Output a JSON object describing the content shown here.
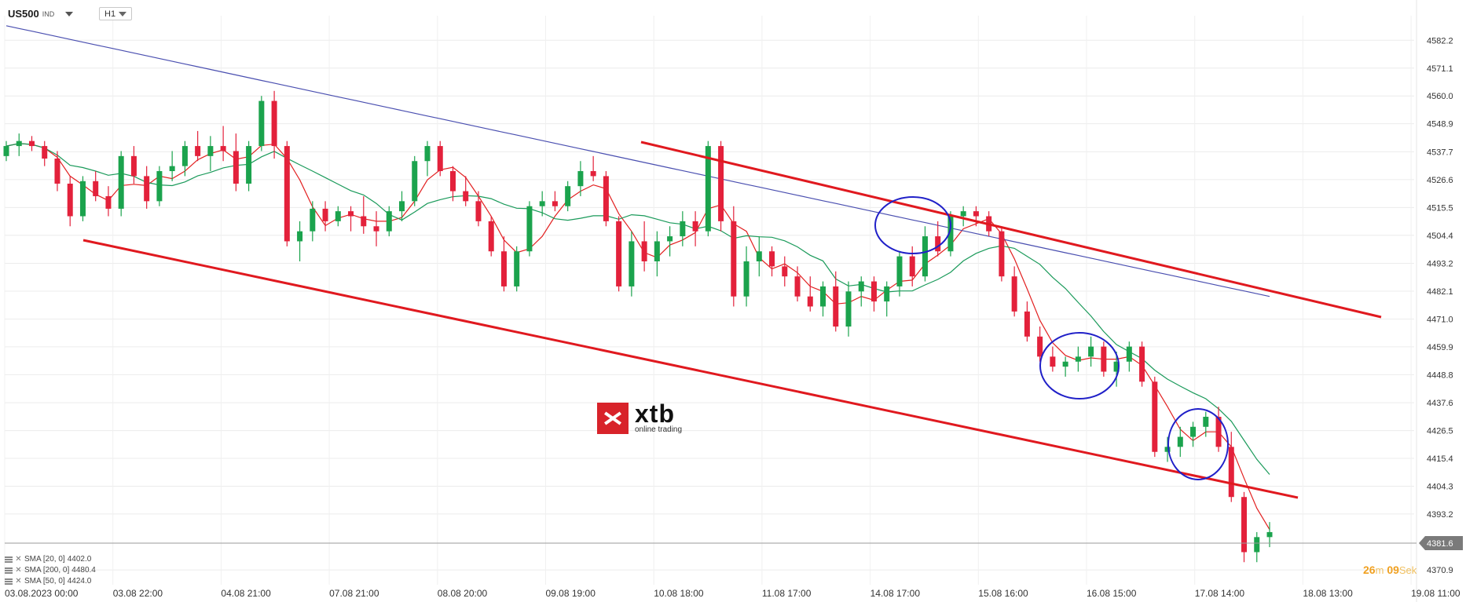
{
  "header": {
    "symbol": "US500",
    "symbol_type": "IND",
    "timeframe": "H1"
  },
  "logo": {
    "main": "xtb",
    "sub": "online trading"
  },
  "countdown": {
    "minutes": "26",
    "min_unit": "m",
    "seconds": "09",
    "sec_unit": "Sek"
  },
  "indicators": [
    {
      "label": "SMA [20, 0]",
      "value": "4402.0"
    },
    {
      "label": "SMA [200, 0]",
      "value": "4480.4"
    },
    {
      "label": "SMA [50, 0]",
      "value": "4424.0"
    }
  ],
  "chart_data": {
    "type": "candlestick",
    "ylim": [
      4365,
      4592
    ],
    "y_ticks": [
      "4582.2",
      "4571.1",
      "4560.0",
      "4548.9",
      "4537.7",
      "4526.6",
      "4515.5",
      "4504.4",
      "4493.2",
      "4482.1",
      "4471.0",
      "4459.9",
      "4448.8",
      "4437.6",
      "4426.5",
      "4415.4",
      "4404.3",
      "4393.2",
      "4370.9"
    ],
    "x_ticks": [
      "03.08.2023  00:00",
      "03.08  22:00",
      "04.08  21:00",
      "07.08  21:00",
      "08.08  20:00",
      "09.08  19:00",
      "10.08  18:00",
      "11.08  17:00",
      "14.08  17:00",
      "15.08  16:00",
      "16.08  15:00",
      "17.08  14:00",
      "18.08  13:00",
      "19.08  11:00"
    ],
    "current_price": "4381.6",
    "candles": [
      [
        4536,
        4542,
        4534,
        4540
      ],
      [
        4540,
        4545,
        4536,
        4542
      ],
      [
        4542,
        4544,
        4538,
        4540
      ],
      [
        4540,
        4542,
        4532,
        4535
      ],
      [
        4535,
        4538,
        4522,
        4525
      ],
      [
        4525,
        4528,
        4508,
        4512
      ],
      [
        4512,
        4528,
        4510,
        4526
      ],
      [
        4526,
        4530,
        4518,
        4520
      ],
      [
        4520,
        4524,
        4512,
        4515
      ],
      [
        4515,
        4538,
        4512,
        4536
      ],
      [
        4536,
        4540,
        4525,
        4528
      ],
      [
        4528,
        4532,
        4515,
        4518
      ],
      [
        4518,
        4532,
        4516,
        4530
      ],
      [
        4530,
        4538,
        4526,
        4532
      ],
      [
        4532,
        4542,
        4528,
        4540
      ],
      [
        4540,
        4546,
        4534,
        4536
      ],
      [
        4536,
        4544,
        4530,
        4540
      ],
      [
        4540,
        4548,
        4534,
        4538
      ],
      [
        4538,
        4545,
        4522,
        4525
      ],
      [
        4525,
        4542,
        4522,
        4540
      ],
      [
        4540,
        4560,
        4538,
        4558
      ],
      [
        4558,
        4562,
        4535,
        4540
      ],
      [
        4540,
        4542,
        4500,
        4502
      ],
      [
        4502,
        4510,
        4494,
        4506
      ],
      [
        4506,
        4518,
        4502,
        4515
      ],
      [
        4515,
        4518,
        4506,
        4510
      ],
      [
        4510,
        4516,
        4508,
        4514
      ],
      [
        4514,
        4516,
        4506,
        4512
      ],
      [
        4512,
        4520,
        4505,
        4508
      ],
      [
        4508,
        4514,
        4500,
        4506
      ],
      [
        4506,
        4516,
        4504,
        4514
      ],
      [
        4514,
        4522,
        4510,
        4518
      ],
      [
        4518,
        4536,
        4516,
        4534
      ],
      [
        4534,
        4542,
        4528,
        4540
      ],
      [
        4540,
        4542,
        4528,
        4530
      ],
      [
        4530,
        4532,
        4518,
        4522
      ],
      [
        4522,
        4528,
        4516,
        4518
      ],
      [
        4518,
        4522,
        4508,
        4510
      ],
      [
        4510,
        4512,
        4496,
        4498
      ],
      [
        4498,
        4504,
        4482,
        4484
      ],
      [
        4484,
        4500,
        4482,
        4498
      ],
      [
        4498,
        4518,
        4496,
        4516
      ],
      [
        4516,
        4522,
        4512,
        4518
      ],
      [
        4518,
        4522,
        4514,
        4516
      ],
      [
        4516,
        4526,
        4514,
        4524
      ],
      [
        4524,
        4534,
        4520,
        4530
      ],
      [
        4530,
        4536,
        4526,
        4528
      ],
      [
        4528,
        4530,
        4508,
        4510
      ],
      [
        4510,
        4512,
        4482,
        4484
      ],
      [
        4484,
        4506,
        4480,
        4502
      ],
      [
        4502,
        4510,
        4490,
        4494
      ],
      [
        4494,
        4506,
        4488,
        4502
      ],
      [
        4502,
        4508,
        4496,
        4504
      ],
      [
        4504,
        4514,
        4500,
        4510
      ],
      [
        4510,
        4514,
        4500,
        4506
      ],
      [
        4506,
        4542,
        4504,
        4540
      ],
      [
        4540,
        4542,
        4506,
        4510
      ],
      [
        4510,
        4516,
        4476,
        4480
      ],
      [
        4480,
        4500,
        4476,
        4494
      ],
      [
        4494,
        4504,
        4488,
        4498
      ],
      [
        4498,
        4500,
        4488,
        4492
      ],
      [
        4492,
        4496,
        4484,
        4488
      ],
      [
        4488,
        4492,
        4478,
        4480
      ],
      [
        4480,
        4488,
        4474,
        4476
      ],
      [
        4476,
        4486,
        4472,
        4484
      ],
      [
        4484,
        4490,
        4466,
        4468
      ],
      [
        4468,
        4486,
        4464,
        4482
      ],
      [
        4482,
        4488,
        4476,
        4486
      ],
      [
        4486,
        4488,
        4474,
        4478
      ],
      [
        4478,
        4486,
        4472,
        4484
      ],
      [
        4484,
        4498,
        4480,
        4496
      ],
      [
        4496,
        4500,
        4484,
        4488
      ],
      [
        4488,
        4508,
        4486,
        4504
      ],
      [
        4504,
        4510,
        4496,
        4498
      ],
      [
        4498,
        4514,
        4496,
        4512
      ],
      [
        4512,
        4516,
        4508,
        4514
      ],
      [
        4514,
        4516,
        4508,
        4512
      ],
      [
        4512,
        4514,
        4504,
        4506
      ],
      [
        4506,
        4508,
        4486,
        4488
      ],
      [
        4488,
        4492,
        4472,
        4474
      ],
      [
        4474,
        4478,
        4462,
        4464
      ],
      [
        4464,
        4468,
        4454,
        4456
      ],
      [
        4456,
        4460,
        4450,
        4452
      ],
      [
        4452,
        4456,
        4448,
        4454
      ],
      [
        4454,
        4460,
        4450,
        4456
      ],
      [
        4456,
        4464,
        4452,
        4460
      ],
      [
        4460,
        4462,
        4448,
        4450
      ],
      [
        4450,
        4458,
        4444,
        4454
      ],
      [
        4454,
        4462,
        4450,
        4460
      ],
      [
        4460,
        4462,
        4444,
        4446
      ],
      [
        4446,
        4448,
        4416,
        4418
      ],
      [
        4418,
        4424,
        4414,
        4420
      ],
      [
        4420,
        4428,
        4416,
        4424
      ],
      [
        4424,
        4430,
        4420,
        4428
      ],
      [
        4428,
        4434,
        4424,
        4432
      ],
      [
        4432,
        4436,
        4418,
        4420
      ],
      [
        4420,
        4426,
        4398,
        4400
      ],
      [
        4400,
        4402,
        4374,
        4378
      ],
      [
        4378,
        4386,
        4374,
        4384
      ],
      [
        4384,
        4390,
        4380,
        4386
      ]
    ]
  }
}
